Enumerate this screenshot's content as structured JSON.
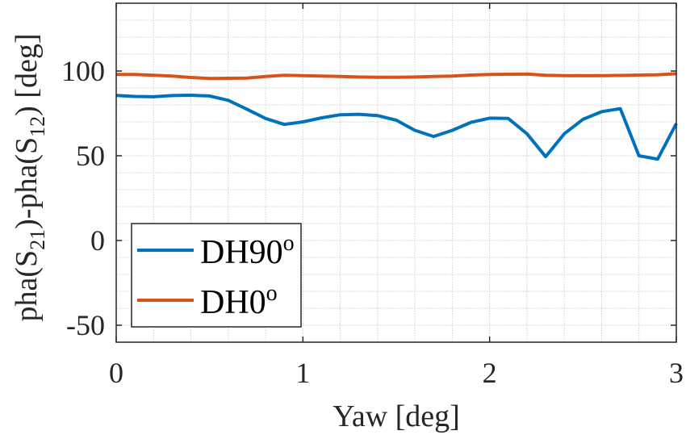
{
  "chart_data": {
    "type": "line",
    "title": "",
    "xlabel": "Yaw [deg]",
    "ylabel": "pha(S21)-pha(S12) [deg]",
    "ylabel_parts": {
      "a": "pha(S",
      "sub1": "21",
      "b": ")-pha(S",
      "sub2": "12",
      "c": ") [deg]"
    },
    "xlim": [
      0,
      3
    ],
    "ylim": [
      -60,
      140
    ],
    "xticks": [
      0,
      1,
      2,
      3
    ],
    "xtick_labels": [
      "0",
      "1",
      "2",
      "3"
    ],
    "yticks": [
      -50,
      0,
      50,
      100
    ],
    "ytick_labels": [
      "-50",
      "0",
      "50",
      "100"
    ],
    "grid": true,
    "minor_grid": true,
    "legend_position": "lower left",
    "x": [
      0,
      0.1,
      0.2,
      0.3,
      0.4,
      0.5,
      0.6,
      0.7,
      0.8,
      0.9,
      1.0,
      1.1,
      1.2,
      1.3,
      1.4,
      1.5,
      1.6,
      1.7,
      1.8,
      1.9,
      2.0,
      2.1,
      2.2,
      2.3,
      2.4,
      2.5,
      2.6,
      2.7,
      2.8,
      2.9,
      3.0
    ],
    "series": [
      {
        "name": "DH90°",
        "legend_base": "DH90",
        "legend_sup": "o",
        "color": "#0072BD",
        "values": [
          85.6,
          85,
          84.8,
          85.5,
          85.7,
          85.3,
          82.7,
          77.5,
          72,
          68.5,
          70,
          72.4,
          74.2,
          74.5,
          73.7,
          71,
          65,
          61.4,
          65,
          69.7,
          72.2,
          72,
          63,
          49.5,
          63,
          71.5,
          76,
          77.8,
          50,
          48,
          69
        ]
      },
      {
        "name": "DH0°",
        "legend_base": "DH0",
        "legend_sup": "o",
        "color": "#D95319",
        "values": [
          98,
          98,
          97.5,
          97,
          96.2,
          95.6,
          95.7,
          95.8,
          96.8,
          97.5,
          97.3,
          97,
          96.8,
          96.5,
          96.3,
          96.3,
          96.5,
          96.8,
          97,
          97.6,
          98,
          98.1,
          98.2,
          97.5,
          97.3,
          97.3,
          97.3,
          97.4,
          97.6,
          97.8,
          98.4
        ]
      }
    ]
  }
}
